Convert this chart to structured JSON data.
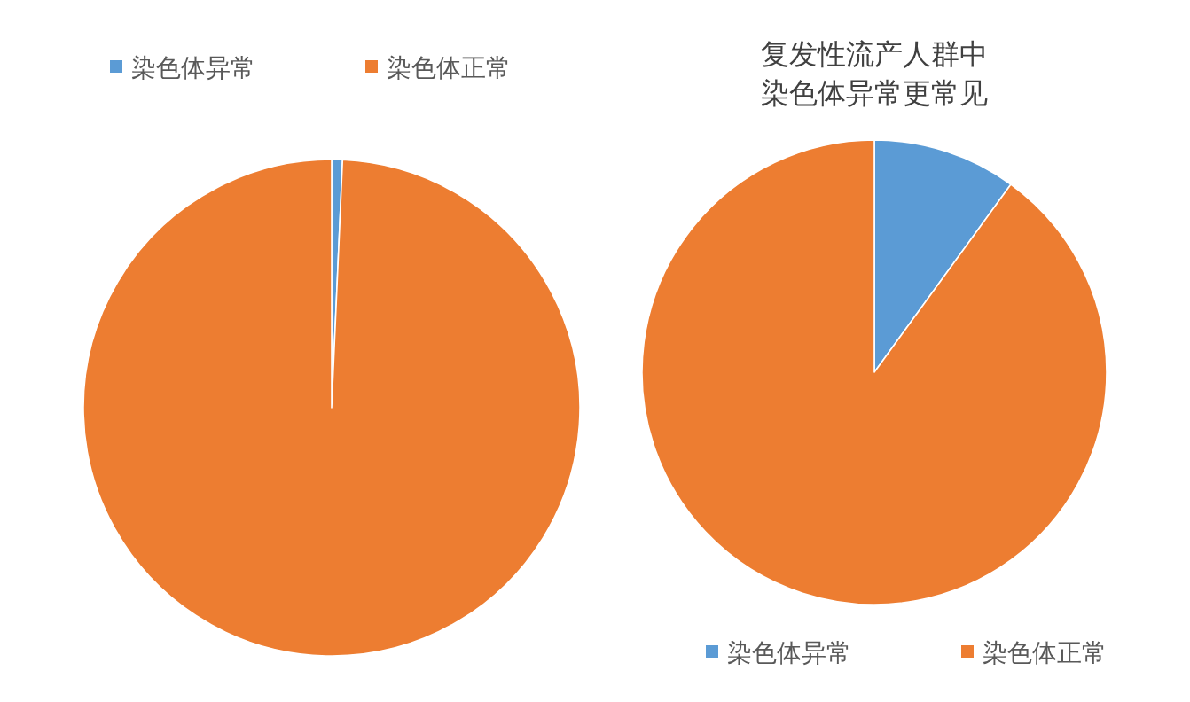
{
  "chart_data": [
    {
      "type": "pie",
      "categories": [
        "染色体异常",
        "染色体正常"
      ],
      "values": [
        0.7,
        99.3
      ],
      "colors": [
        "#5b9bd5",
        "#ed7d31"
      ],
      "legend": "top"
    },
    {
      "type": "pie",
      "title": "复发性流产人群中染色体异常更常见",
      "categories": [
        "染色体异常",
        "染色体正常"
      ],
      "values": [
        10,
        90
      ],
      "colors": [
        "#5b9bd5",
        "#ed7d31"
      ],
      "legend": "bottom"
    }
  ]
}
